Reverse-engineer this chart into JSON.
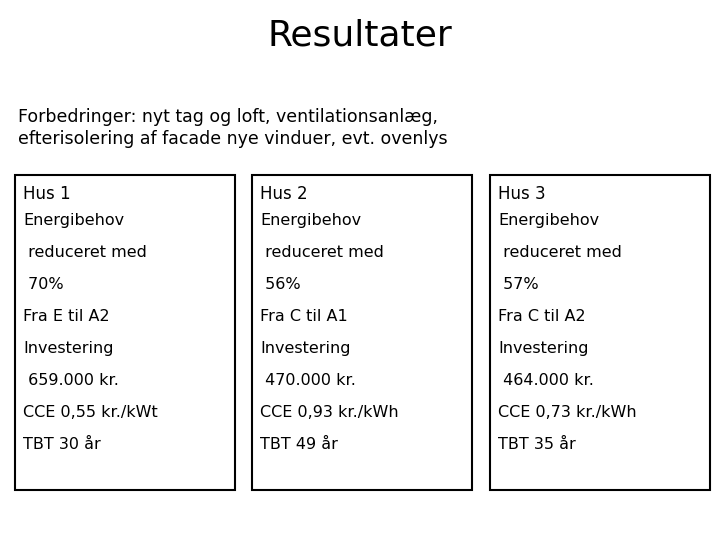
{
  "title": "Resultater",
  "subtitle_line1": "Forbedringer: nyt tag og loft, ventilationsanlæg,",
  "subtitle_line2": "efterisolering af facade nye vinduer, evt. ovenlys",
  "boxes": [
    {
      "header": "Hus 1",
      "lines": [
        "Energibehov",
        " reduceret med",
        " 70%",
        "Fra E til A2",
        "Investering",
        " 659.000 kr.",
        "CCE 0,55 kr./kWt",
        "TBT 30 år"
      ]
    },
    {
      "header": "Hus 2",
      "lines": [
        "Energibehov",
        " reduceret med",
        " 56%",
        "Fra C til A1",
        "Investering",
        " 470.000 kr.",
        "CCE 0,93 kr./kWh",
        "TBT 49 år"
      ]
    },
    {
      "header": "Hus 3",
      "lines": [
        "Energibehov",
        " reduceret med",
        " 57%",
        "Fra C til A2",
        "Investering",
        " 464.000 kr.",
        "CCE 0,73 kr./kWh",
        "TBT 35 år"
      ]
    }
  ],
  "background_color": "#ffffff",
  "text_color": "#000000",
  "box_border_color": "#000000",
  "title_fontsize": 26,
  "subtitle_fontsize": 12.5,
  "header_fontsize": 12,
  "body_fontsize": 11.5,
  "fig_width": 7.2,
  "fig_height": 5.4,
  "fig_dpi": 100
}
